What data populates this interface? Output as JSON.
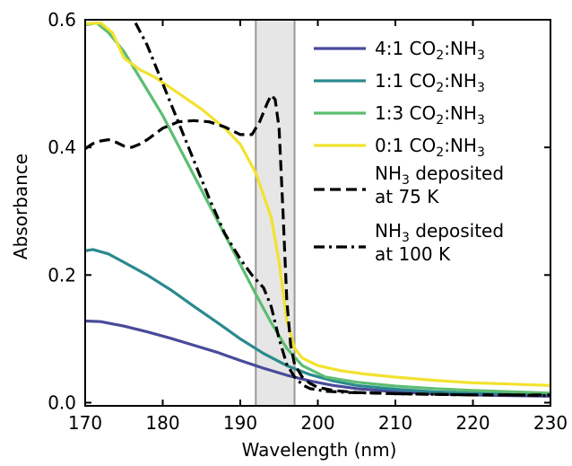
{
  "chart_data": {
    "type": "line",
    "xlabel": "Wavelength (nm)",
    "ylabel": "Absorbance",
    "xlim": [
      170,
      230
    ],
    "ylim": [
      -0.005,
      0.6
    ],
    "xticks": [
      170,
      180,
      190,
      200,
      210,
      220,
      230
    ],
    "xtick_labels": [
      "170",
      "180",
      "190",
      "200",
      "210",
      "220",
      "230"
    ],
    "yticks": [
      0.0,
      0.2,
      0.4,
      0.6
    ],
    "ytick_labels": [
      "0.0",
      "0.2",
      "0.4",
      "0.6"
    ],
    "grid": false,
    "legend_position": "top-right",
    "shaded_region": [
      192,
      197
    ],
    "series": [
      {
        "name": "4:1 CO2:NH3",
        "name_base": "4:1 CO",
        "name_sub1": "2",
        "name_mid": ":NH",
        "name_sub2": "3",
        "color": "#4a4a9a",
        "dash": "solid",
        "x": [
          170,
          172,
          175,
          178,
          181,
          184,
          187,
          190,
          193,
          196,
          199,
          202,
          205,
          210,
          215,
          220,
          225,
          230
        ],
        "y": [
          0.128,
          0.127,
          0.12,
          0.111,
          0.101,
          0.09,
          0.079,
          0.066,
          0.054,
          0.043,
          0.034,
          0.027,
          0.022,
          0.017,
          0.014,
          0.012,
          0.011,
          0.01
        ]
      },
      {
        "name": "1:1 CO2:NH3",
        "name_base": "1:1 CO",
        "name_sub1": "2",
        "name_mid": ":NH",
        "name_sub2": "3",
        "color": "#2a8a8e",
        "dash": "solid",
        "x": [
          170,
          171,
          173,
          175,
          178,
          181,
          184,
          187,
          190,
          193,
          196,
          199,
          202,
          205,
          210,
          215,
          220,
          225,
          230
        ],
        "y": [
          0.238,
          0.24,
          0.233,
          0.22,
          0.2,
          0.177,
          0.151,
          0.126,
          0.1,
          0.077,
          0.058,
          0.044,
          0.034,
          0.027,
          0.021,
          0.017,
          0.015,
          0.014,
          0.013
        ]
      },
      {
        "name": "1:3 CO2:NH3",
        "name_base": "1:3 CO",
        "name_sub1": "2",
        "name_mid": ":NH",
        "name_sub2": "3",
        "color": "#5dbd72",
        "dash": "solid",
        "x": [
          170,
          171.5,
          173,
          175,
          177,
          180,
          183,
          186,
          189,
          192,
          194,
          196,
          198,
          201,
          205,
          210,
          215,
          220,
          225,
          230
        ],
        "y": [
          0.592,
          0.595,
          0.58,
          0.55,
          0.51,
          0.45,
          0.38,
          0.31,
          0.24,
          0.17,
          0.125,
          0.085,
          0.058,
          0.04,
          0.032,
          0.026,
          0.022,
          0.019,
          0.017,
          0.015
        ]
      },
      {
        "name": "0:1 CO2:NH3",
        "name_base": "0:1 CO",
        "name_sub1": "2",
        "name_mid": ":NH",
        "name_sub2": "3",
        "color": "#f2e22e",
        "dash": "solid",
        "x": [
          170,
          172,
          173.5,
          175,
          177,
          179,
          182,
          185,
          188,
          190,
          192,
          194,
          195,
          196,
          197,
          198,
          200,
          203,
          206,
          210,
          215,
          220,
          225,
          230
        ],
        "y": [
          0.594,
          0.595,
          0.58,
          0.54,
          0.522,
          0.51,
          0.485,
          0.46,
          0.43,
          0.405,
          0.36,
          0.29,
          0.22,
          0.13,
          0.085,
          0.07,
          0.058,
          0.05,
          0.045,
          0.04,
          0.035,
          0.031,
          0.029,
          0.027
        ]
      },
      {
        "name": "NH3 deposited at 75 K",
        "name_line1_base": "NH",
        "name_line1_sub": "3",
        "name_line1_rest": " deposited",
        "name_line2": "at 75 K",
        "color": "#000000",
        "dash": "dashed",
        "x": [
          170,
          171,
          172,
          173,
          174,
          175,
          176,
          177,
          178,
          180,
          182,
          184,
          186,
          188,
          190,
          191.5,
          192.5,
          193.5,
          194,
          194.5,
          195,
          195.5,
          196,
          196.5,
          197,
          198,
          199,
          200,
          202,
          205,
          210,
          215,
          220,
          225,
          230
        ],
        "y": [
          0.398,
          0.406,
          0.41,
          0.412,
          0.408,
          0.402,
          0.4,
          0.405,
          0.412,
          0.43,
          0.44,
          0.442,
          0.44,
          0.432,
          0.42,
          0.42,
          0.44,
          0.47,
          0.482,
          0.475,
          0.43,
          0.3,
          0.16,
          0.09,
          0.06,
          0.04,
          0.03,
          0.024,
          0.019,
          0.016,
          0.014,
          0.013,
          0.012,
          0.012,
          0.012
        ]
      },
      {
        "name": "NH3 deposited at 100 K",
        "name_line1_base": "NH",
        "name_line1_sub": "3",
        "name_line1_rest": " deposited",
        "name_line2": "at 100 K",
        "color": "#000000",
        "dash": "dashdot",
        "x": [
          176.5,
          178,
          180,
          182,
          184,
          186,
          188,
          190,
          191.5,
          193,
          194,
          195,
          196,
          197,
          198,
          199,
          201,
          204,
          210,
          215,
          220,
          225,
          230
        ],
        "y": [
          0.595,
          0.56,
          0.5,
          0.44,
          0.38,
          0.32,
          0.265,
          0.225,
          0.2,
          0.18,
          0.15,
          0.1,
          0.06,
          0.04,
          0.028,
          0.022,
          0.018,
          0.016,
          0.014,
          0.013,
          0.012,
          0.012,
          0.011
        ]
      }
    ]
  }
}
